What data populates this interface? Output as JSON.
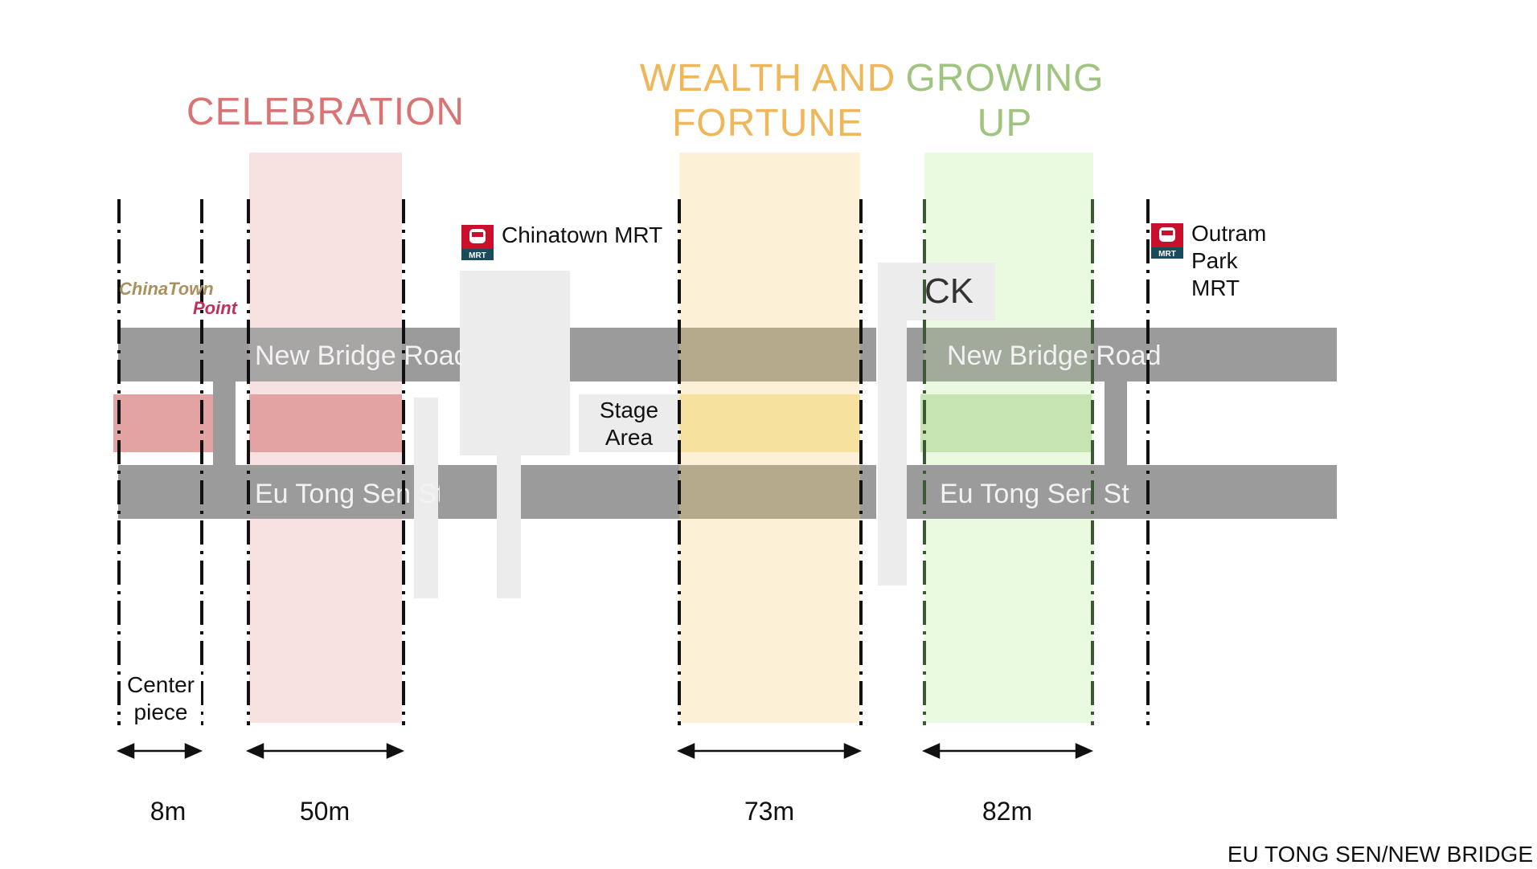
{
  "zones": {
    "celebration": {
      "title": "CELEBRATION",
      "color": "#d87474",
      "band_color": "#f7e1e1",
      "strip_color": "#e3a3a3"
    },
    "wealth": {
      "title": "WEALTH AND\nFORTUNE",
      "color": "#f0b65a",
      "band_color": "#fcf1d6",
      "strip_color": "#f7e19f"
    },
    "growing": {
      "title": "GROWING\nUP",
      "color": "#9fc47f",
      "band_color": "#eafae1",
      "strip_color": "#c6e3b2"
    }
  },
  "roads": {
    "new_bridge_left": "New Bridge Road",
    "new_bridge_right": "New Bridge Road",
    "eu_tong_left": "Eu Tong Sen St",
    "eu_tong_right": "Eu Tong Sen St"
  },
  "mrt": {
    "chinatown": {
      "icon": "mrt-icon",
      "label": "Chinatown MRT",
      "badge": "MRT"
    },
    "outram": {
      "icon": "mrt-icon",
      "label": "Outram\nPark\nMRT",
      "badge": "MRT"
    }
  },
  "logo": {
    "line1": "ChinaTown",
    "line2": "Point"
  },
  "labels": {
    "stage_area": "Stage\nArea",
    "center_piece": "Center\npiece",
    "ck": "CK"
  },
  "dimensions": [
    "8m",
    "50m",
    "73m",
    "82m"
  ],
  "footer": "EU TONG SEN/NEW BRIDGE"
}
